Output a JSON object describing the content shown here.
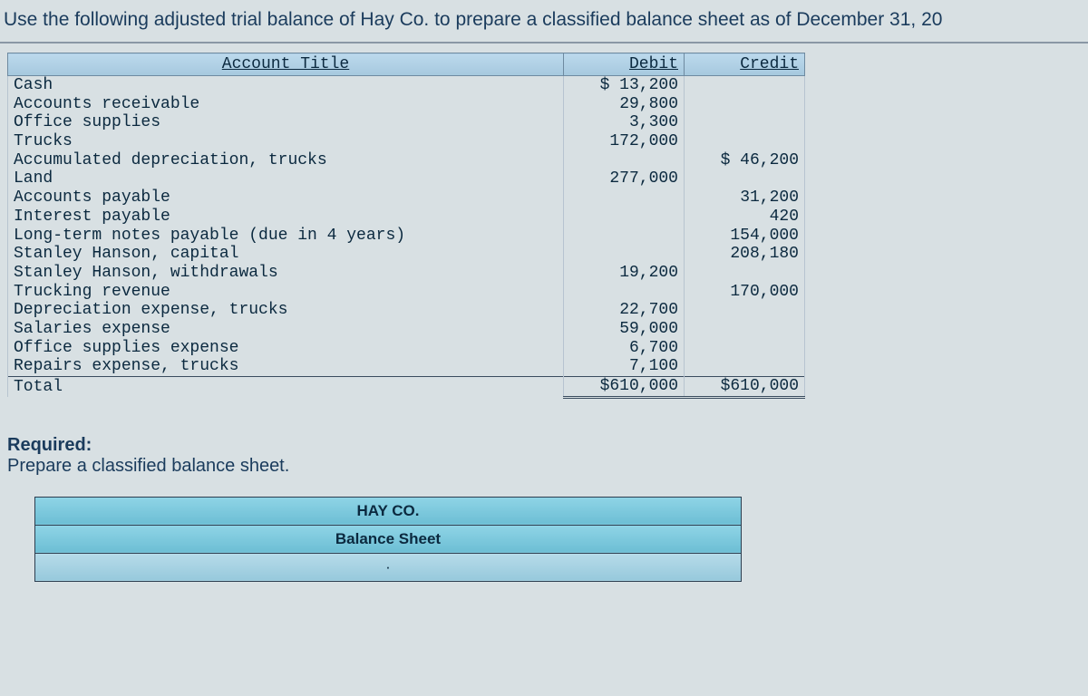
{
  "instruction": "Use the following adjusted trial balance of Hay Co. to prepare a classified balance sheet as of December 31, 20",
  "trial_balance": {
    "columns": {
      "acct": "Account Title",
      "debit": "Debit",
      "credit": "Credit"
    },
    "rows": [
      {
        "acct": "Cash",
        "debit": "$ 13,200",
        "credit": ""
      },
      {
        "acct": "Accounts receivable",
        "debit": "29,800",
        "credit": ""
      },
      {
        "acct": "Office supplies",
        "debit": "3,300",
        "credit": ""
      },
      {
        "acct": "Trucks",
        "debit": "172,000",
        "credit": ""
      },
      {
        "acct": "Accumulated depreciation, trucks",
        "debit": "",
        "credit": "$ 46,200"
      },
      {
        "acct": "Land",
        "debit": "277,000",
        "credit": ""
      },
      {
        "acct": "Accounts payable",
        "debit": "",
        "credit": "31,200"
      },
      {
        "acct": "Interest payable",
        "debit": "",
        "credit": "420"
      },
      {
        "acct": "Long-term notes payable (due in 4 years)",
        "debit": "",
        "credit": "154,000"
      },
      {
        "acct": "Stanley Hanson, capital",
        "debit": "",
        "credit": "208,180"
      },
      {
        "acct": "Stanley Hanson, withdrawals",
        "debit": "19,200",
        "credit": ""
      },
      {
        "acct": "Trucking revenue",
        "debit": "",
        "credit": "170,000"
      },
      {
        "acct": "Depreciation expense, trucks",
        "debit": "22,700",
        "credit": ""
      },
      {
        "acct": "Salaries expense",
        "debit": "59,000",
        "credit": ""
      },
      {
        "acct": "Office supplies expense",
        "debit": "6,700",
        "credit": ""
      },
      {
        "acct": "Repairs expense, trucks",
        "debit": "7,100",
        "credit": ""
      }
    ],
    "total": {
      "acct": "Total",
      "debit": "$610,000",
      "credit": "$610,000"
    }
  },
  "required": {
    "title": "Required:",
    "text": "Prepare a classified balance sheet."
  },
  "answer_sheet": {
    "company": "HAY CO.",
    "title": "Balance Sheet",
    "dot": "·"
  },
  "style": {
    "bg": "#d8e0e3",
    "header_bg": "#a5c8de",
    "answer_header_bg": "#6cbed4",
    "text_color": "#0b293f",
    "mono_font": "Courier New",
    "body_font": "Arial"
  }
}
